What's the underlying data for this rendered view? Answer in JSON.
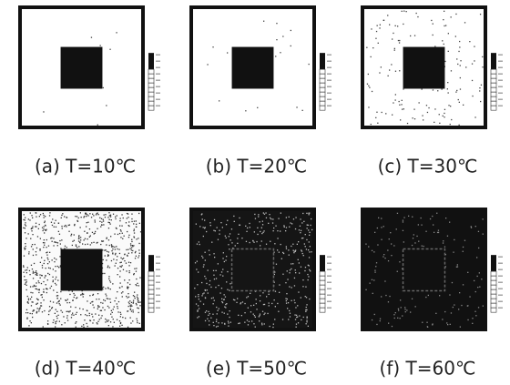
{
  "panels": [
    {
      "caption": "(a) T=10℃"
    },
    {
      "caption": "(b) T=20℃"
    },
    {
      "caption": "(c) T=30℃"
    },
    {
      "caption": "(d) T=40℃"
    },
    {
      "caption": "(e) T=50℃"
    },
    {
      "caption": "(f) T=60℃"
    }
  ]
}
